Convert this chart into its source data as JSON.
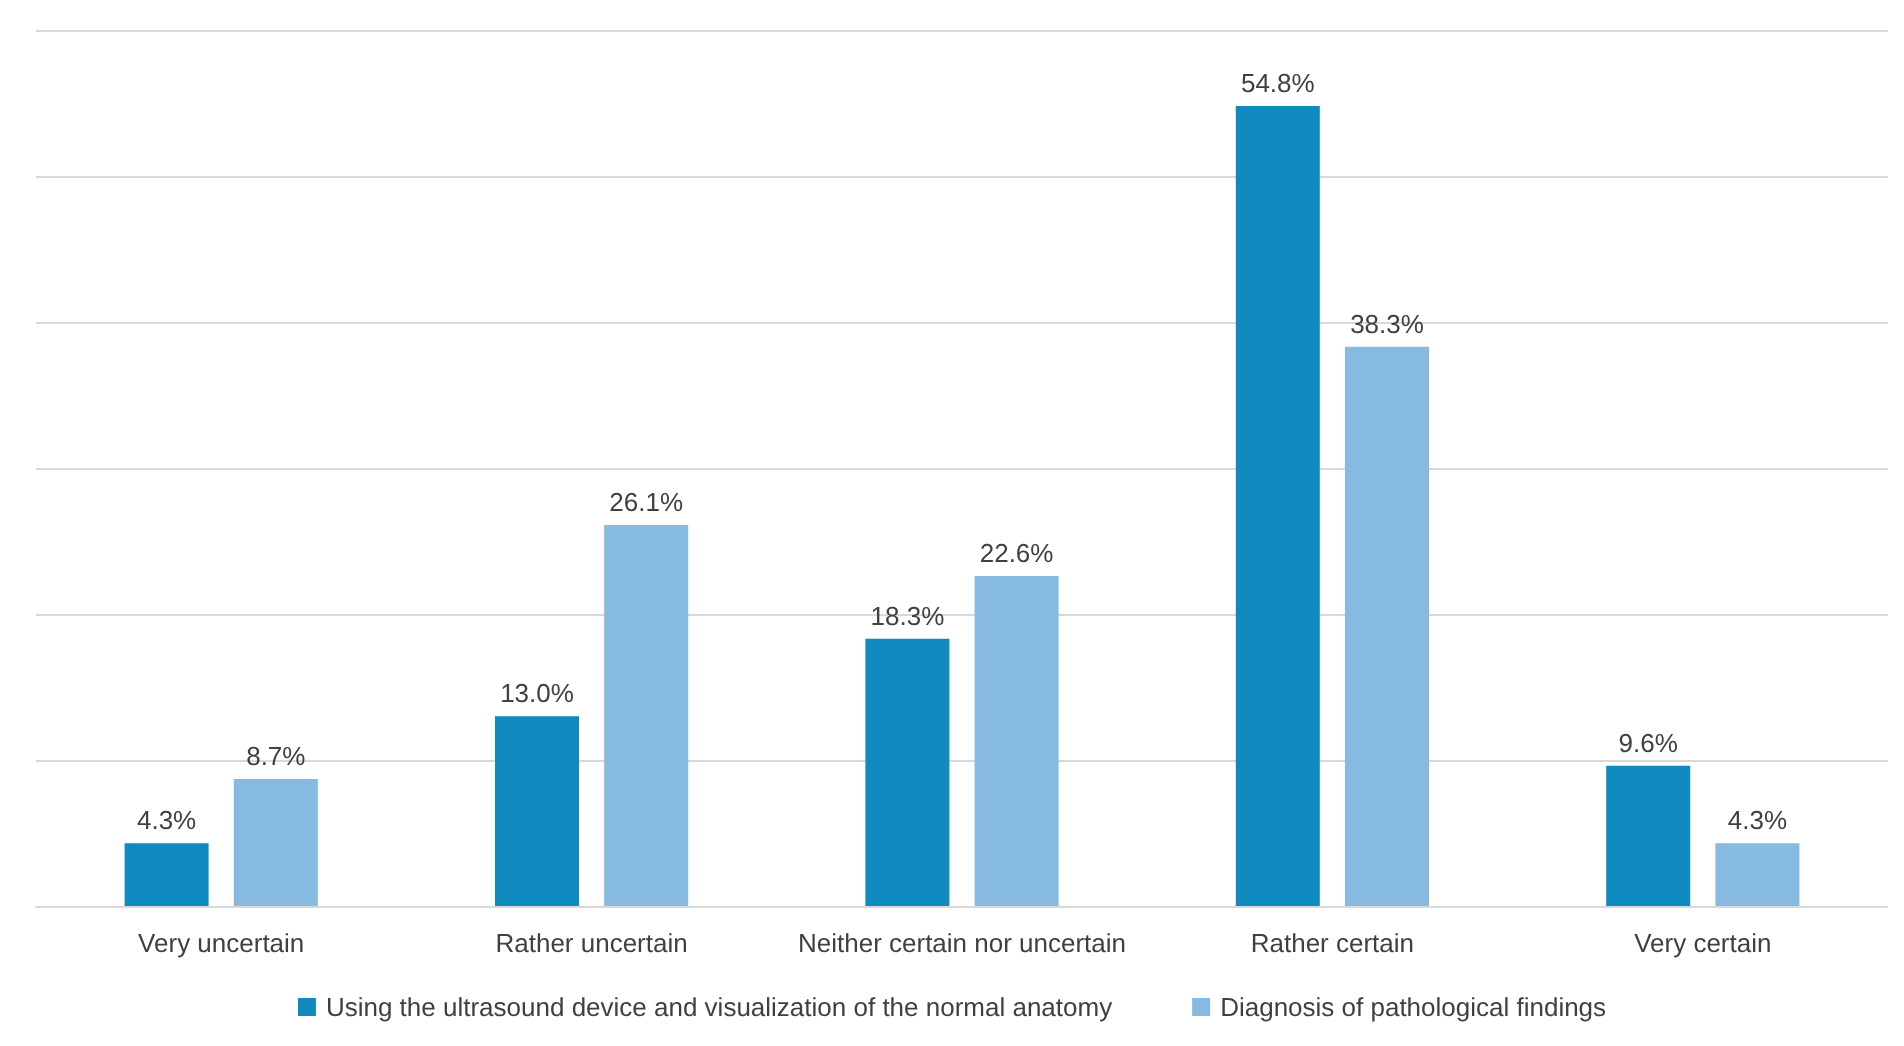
{
  "chart_data": {
    "type": "bar",
    "categories": [
      "Very uncertain",
      "Rather uncertain",
      "Neither certain nor uncertain",
      "Rather certain",
      "Very certain"
    ],
    "series": [
      {
        "name": "Using the ultrasound device and visualization of the normal anatomy",
        "color": "#0e8abf",
        "values": [
          4.3,
          13.0,
          18.3,
          54.8,
          9.6
        ],
        "value_labels": [
          "4.3%",
          "13.0%",
          "18.3%",
          "54.8%",
          "9.6%"
        ]
      },
      {
        "name": "Diagnosis of pathological findings",
        "color": "#86bae0",
        "values": [
          8.7,
          26.1,
          22.6,
          38.3,
          4.3
        ],
        "value_labels": [
          "8.7%",
          "26.1%",
          "22.6%",
          "38.3%",
          "4.3%"
        ]
      }
    ],
    "ylim": [
      0,
      60
    ],
    "yticks": [
      {
        "value": 0,
        "label": null
      },
      {
        "value": 10,
        "label": null
      },
      {
        "value": 20,
        "label": null
      },
      {
        "value": 30,
        "label": null
      },
      {
        "value": 40,
        "label": null
      },
      {
        "value": 50,
        "label": null
      },
      {
        "value": 60,
        "label": null
      }
    ],
    "tick_labels": "x",
    "grid": "y",
    "legend": "bottom"
  }
}
